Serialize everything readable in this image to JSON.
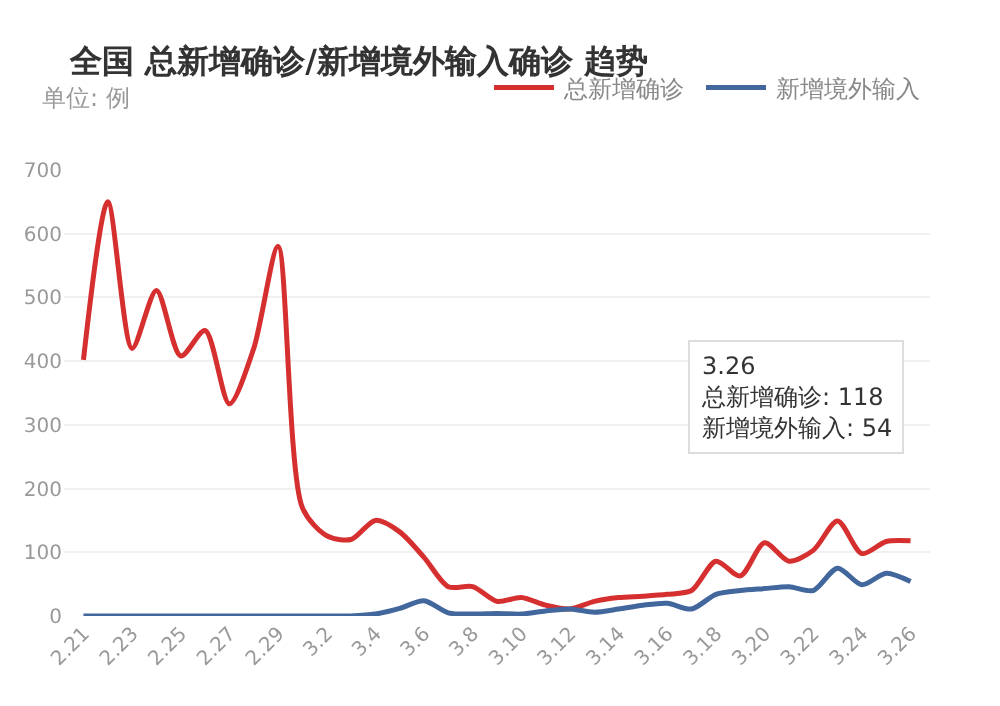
{
  "chart_data": {
    "type": "line",
    "title": "全国 总新增确诊/新增境外输入确诊 趋势",
    "subtitle": "单位: 例",
    "categories": [
      "2.21",
      null,
      "2.23",
      null,
      "2.25",
      null,
      "2.27",
      null,
      "2.29",
      null,
      "3.2",
      null,
      "3.4",
      null,
      "3.6",
      null,
      "3.8",
      null,
      "3.10",
      null,
      "3.12",
      null,
      "3.14",
      null,
      "3.16",
      null,
      "3.18",
      null,
      "3.20",
      null,
      "3.22",
      null,
      "3.24",
      null,
      "3.26"
    ],
    "series": [
      {
        "name": "总新增确诊",
        "color": "#d62f2f",
        "values": [
          402,
          650,
          420,
          511,
          408,
          448,
          333,
          420,
          580,
          170,
          126,
          120,
          150,
          132,
          92,
          46,
          46,
          23,
          29,
          17,
          11,
          23,
          29,
          31,
          34,
          40,
          86,
          63,
          115,
          86,
          103,
          149,
          98,
          117,
          118
        ]
      },
      {
        "name": "新增境外输入",
        "color": "#41679c",
        "values": [
          0,
          0,
          0,
          0,
          0,
          0,
          0,
          0,
          0,
          0,
          0,
          0,
          3,
          12,
          24,
          5,
          3,
          4,
          3,
          8,
          11,
          6,
          11,
          17,
          20,
          11,
          34,
          40,
          43,
          46,
          40,
          75,
          49,
          67,
          54
        ]
      }
    ],
    "ylim": [
      0,
      700
    ],
    "yticks": [
      0,
      100,
      200,
      300,
      400,
      500,
      600,
      700
    ],
    "grid": "y",
    "legend": "top right",
    "marker": "none",
    "line_style": "solid",
    "annotations": [
      "3.26",
      "总新增确诊: 118",
      "新增境外输入: 54"
    ]
  }
}
